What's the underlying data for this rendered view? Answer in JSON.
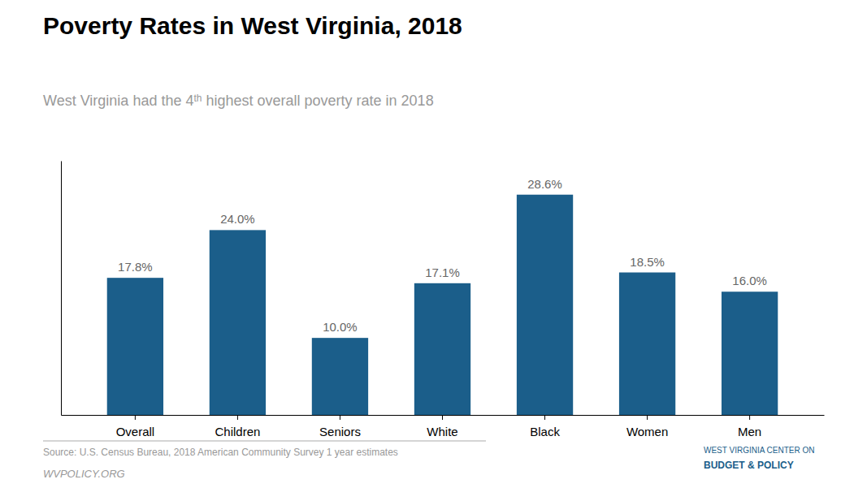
{
  "chart_data": {
    "type": "bar",
    "title": "Poverty Rates in West Virginia, 2018",
    "subtitle": [
      "West Virginia had the 4",
      "th",
      " highest overall poverty rate in 2018"
    ],
    "categories": [
      "Overall",
      "Children",
      "Seniors",
      "White",
      "Black",
      "Women",
      "Men"
    ],
    "values": [
      17.8,
      24.0,
      10.0,
      17.1,
      28.6,
      18.5,
      16.0
    ],
    "value_labels": [
      "17.8%",
      "24.0%",
      "10.0%",
      "17.1%",
      "28.6%",
      "18.5%",
      "16.0%"
    ],
    "data_labels": true,
    "color": "#1B5E8A",
    "ylim": [
      0,
      33
    ],
    "grid": false,
    "tick_labels": "x",
    "annotations": [
      "Source: U.S. Census Bureau, 2018 American Community Survey 1 year estimates",
      "WVPOLICY.ORG",
      "WEST VIRGINIA CENTER ON",
      "BUDGET & POLICY"
    ]
  }
}
